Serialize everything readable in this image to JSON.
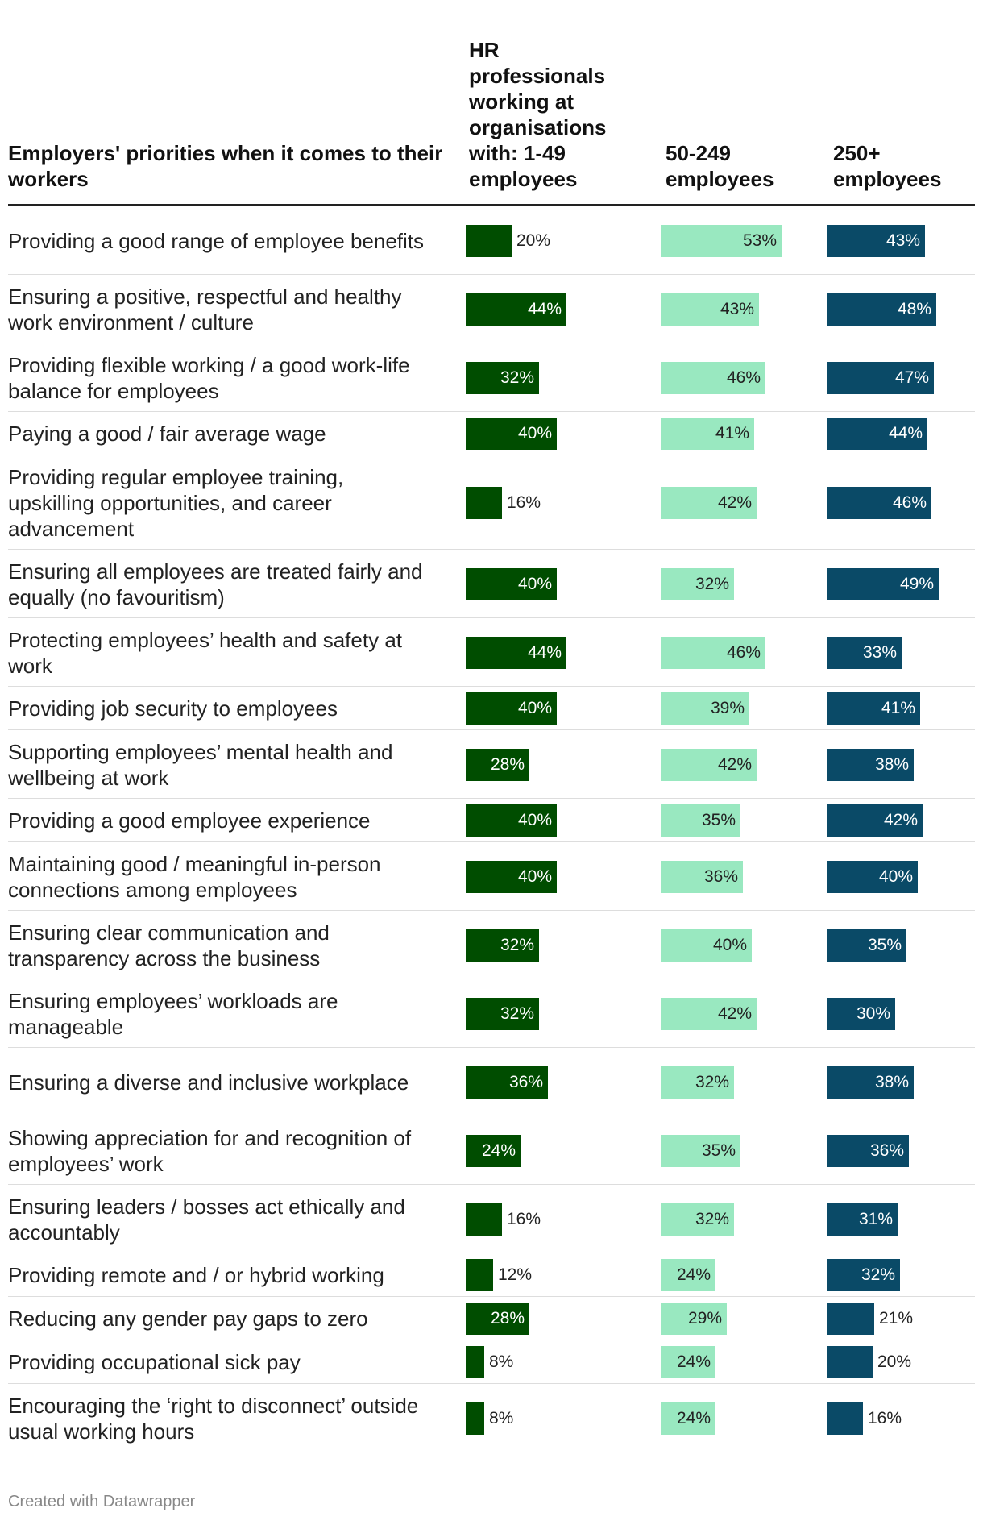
{
  "chart_data": {
    "type": "table",
    "columns": [
      {
        "name": "Employers' priorities when it comes to their workers"
      },
      {
        "name": "HR professionals working at organisations with: 1-49 employees",
        "color": "#004d00",
        "label_color": "#ffffff"
      },
      {
        "name": "50-249 employees",
        "color": "#99e8c0",
        "label_color": "#222222"
      },
      {
        "name": "250+ employees",
        "color": "#0a4a67",
        "label_color": "#ffffff"
      }
    ],
    "rows": [
      {
        "label": "Providing a good range of employee benefits",
        "values": [
          20,
          53,
          43
        ]
      },
      {
        "label": "Ensuring a positive, respectful and healthy work environment / culture",
        "values": [
          44,
          43,
          48
        ]
      },
      {
        "label": "Providing flexible working / a good work-life balance for employees",
        "values": [
          32,
          46,
          47
        ]
      },
      {
        "label": "Paying a good / fair average wage",
        "values": [
          40,
          41,
          44
        ]
      },
      {
        "label": "Providing regular employee training, upskilling opportunities, and career advancement",
        "values": [
          16,
          42,
          46
        ]
      },
      {
        "label": "Ensuring all employees are treated fairly and equally (no favouritism)",
        "values": [
          40,
          32,
          49
        ]
      },
      {
        "label": "Protecting employees’ health and safety at work",
        "values": [
          44,
          46,
          33
        ]
      },
      {
        "label": "Providing job security to employees",
        "values": [
          40,
          39,
          41
        ]
      },
      {
        "label": "Supporting employees’ mental health and wellbeing at work",
        "values": [
          28,
          42,
          38
        ]
      },
      {
        "label": "Providing a good employee experience",
        "values": [
          40,
          35,
          42
        ]
      },
      {
        "label": "Maintaining good / meaningful in-person connections among employees",
        "values": [
          40,
          36,
          40
        ]
      },
      {
        "label": "Ensuring clear communication and transparency across the business",
        "values": [
          32,
          40,
          35
        ]
      },
      {
        "label": "Ensuring employees’ workloads are manageable",
        "values": [
          32,
          42,
          30
        ]
      },
      {
        "label": "Ensuring a diverse and inclusive workplace",
        "values": [
          36,
          32,
          38
        ]
      },
      {
        "label": "Showing appreciation for and recognition of employees’ work",
        "values": [
          24,
          35,
          36
        ]
      },
      {
        "label": "Ensuring leaders / bosses act ethically and accountably",
        "values": [
          16,
          32,
          31
        ]
      },
      {
        "label": "Providing remote and / or hybrid working",
        "values": [
          12,
          24,
          32
        ]
      },
      {
        "label": "Reducing any gender pay gaps to zero",
        "values": [
          28,
          29,
          21
        ]
      },
      {
        "label": "Providing occupational sick pay",
        "values": [
          8,
          24,
          20
        ]
      },
      {
        "label": "Encouraging the ‘right to disconnect’ outside usual working hours",
        "values": [
          8,
          24,
          16
        ]
      }
    ],
    "value_suffix": "%",
    "xlim": [
      0,
      53
    ]
  },
  "footer": {
    "text": "Created with Datawrapper"
  }
}
